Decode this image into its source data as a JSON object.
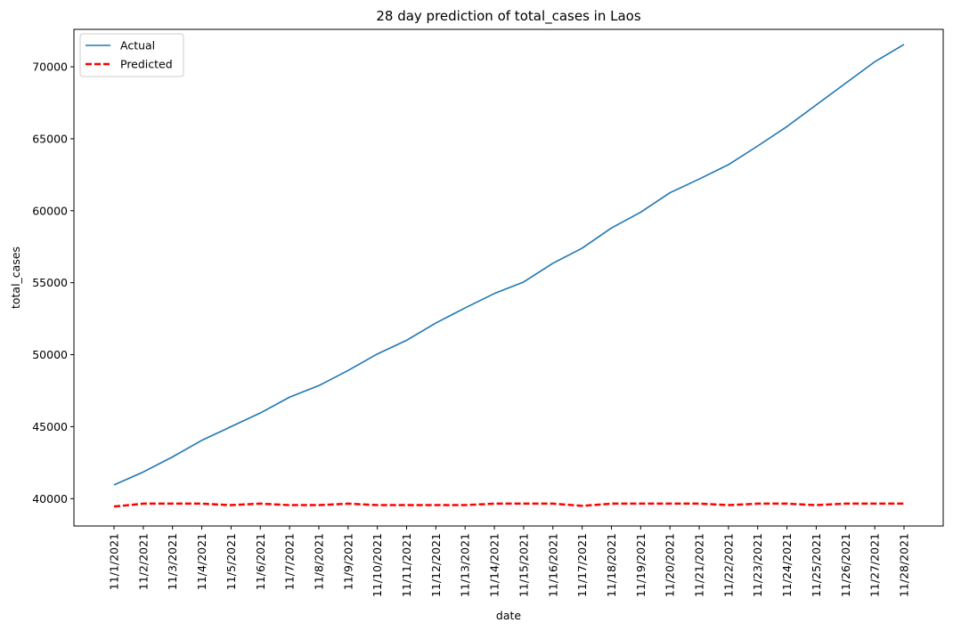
{
  "chart_data": {
    "type": "line",
    "title": "28 day prediction of total_cases in Laos",
    "xlabel": "date",
    "ylabel": "total_cases",
    "categories": [
      "11/1/2021",
      "11/2/2021",
      "11/3/2021",
      "11/4/2021",
      "11/5/2021",
      "11/6/2021",
      "11/7/2021",
      "11/8/2021",
      "11/9/2021",
      "11/10/2021",
      "11/11/2021",
      "11/12/2021",
      "11/13/2021",
      "11/14/2021",
      "11/15/2021",
      "11/16/2021",
      "11/17/2021",
      "11/18/2021",
      "11/19/2021",
      "11/20/2021",
      "11/21/2021",
      "11/22/2021",
      "11/23/2021",
      "11/24/2021",
      "11/25/2021",
      "11/26/2021",
      "11/27/2021",
      "11/28/2021"
    ],
    "ylim": [
      38100,
      72600
    ],
    "yticks": [
      40000,
      45000,
      50000,
      55000,
      60000,
      65000,
      70000
    ],
    "grid": false,
    "legend_position": "top-left",
    "series": [
      {
        "name": "Actual",
        "color": "#1f77b4",
        "style": "solid",
        "values": [
          40950,
          41850,
          42900,
          44050,
          45000,
          45950,
          47050,
          47850,
          48900,
          50050,
          51000,
          52200,
          53250,
          54250,
          55050,
          56350,
          57400,
          58800,
          59900,
          61250,
          62200,
          63200,
          64500,
          65850,
          67350,
          68850,
          70350,
          71550
        ]
      },
      {
        "name": "Predicted",
        "color": "#ff0000",
        "style": "dashed",
        "values": [
          39450,
          39650,
          39650,
          39650,
          39550,
          39650,
          39550,
          39550,
          39650,
          39550,
          39550,
          39550,
          39550,
          39650,
          39650,
          39650,
          39500,
          39650,
          39650,
          39650,
          39650,
          39550,
          39650,
          39650,
          39550,
          39650,
          39650,
          39650
        ]
      }
    ]
  }
}
